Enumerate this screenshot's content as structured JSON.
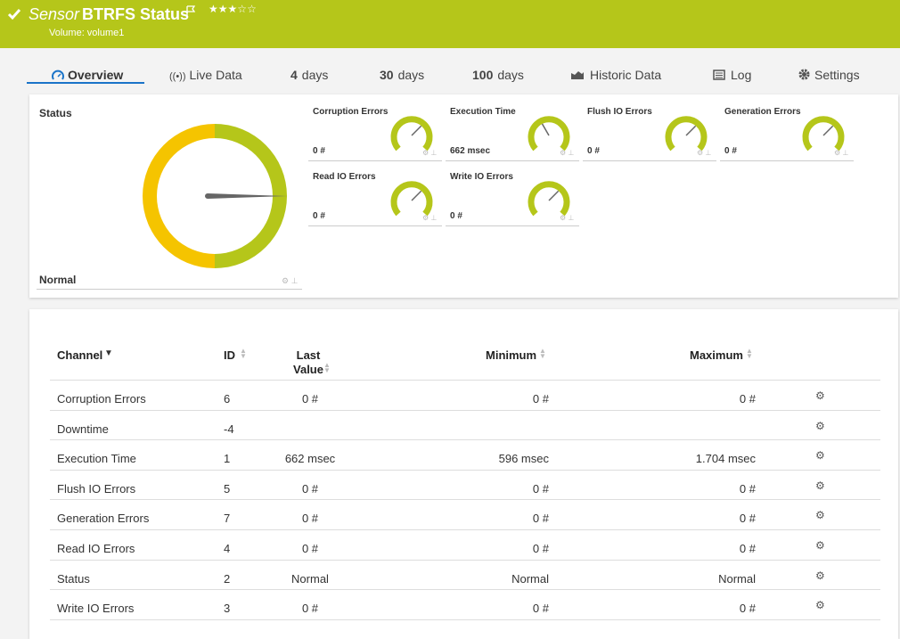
{
  "header": {
    "sensor_label": "Sensor",
    "title": "BTRFS Status",
    "subtitle": "Volume: volume1",
    "priority": 3,
    "priority_max": 5
  },
  "tabs": [
    {
      "label": "Overview"
    },
    {
      "label": "Live Data"
    },
    {
      "number": "4",
      "unit": "days"
    },
    {
      "number": "30",
      "unit": "days"
    },
    {
      "number": "100",
      "unit": "days"
    },
    {
      "label": "Historic Data"
    },
    {
      "label": "Log"
    },
    {
      "label": "Settings"
    }
  ],
  "status": {
    "title": "Status",
    "value": "Normal"
  },
  "gauges": [
    {
      "name": "Corruption Errors",
      "value": "0 #"
    },
    {
      "name": "Execution Time",
      "value": "662 msec"
    },
    {
      "name": "Flush IO Errors",
      "value": "0 #"
    },
    {
      "name": "Generation Errors",
      "value": "0 #"
    },
    {
      "name": "Read IO Errors",
      "value": "0 #"
    },
    {
      "name": "Write IO Errors",
      "value": "0 #"
    }
  ],
  "table": {
    "headers": [
      "Channel",
      "ID",
      "Last Value",
      "Minimum",
      "Maximum"
    ],
    "rows": [
      [
        "Corruption Errors",
        "6",
        "0 #",
        "0 #",
        "0 #"
      ],
      [
        "Downtime",
        "-4",
        null,
        null,
        null
      ],
      [
        "Execution Time",
        "1",
        "662 msec",
        "596 msec",
        "1.704 msec"
      ],
      [
        "Flush IO Errors",
        "5",
        "0 #",
        "0 #",
        "0 #"
      ],
      [
        "Generation Errors",
        "7",
        "0 #",
        "0 #",
        "0 #"
      ],
      [
        "Read IO Errors",
        "4",
        "0 #",
        "0 #",
        "0 #"
      ],
      [
        "Status",
        "2",
        "Normal",
        "Normal",
        "Normal"
      ],
      [
        "Write IO Errors",
        "3",
        "0 #",
        "0 #",
        "0 #"
      ]
    ]
  }
}
